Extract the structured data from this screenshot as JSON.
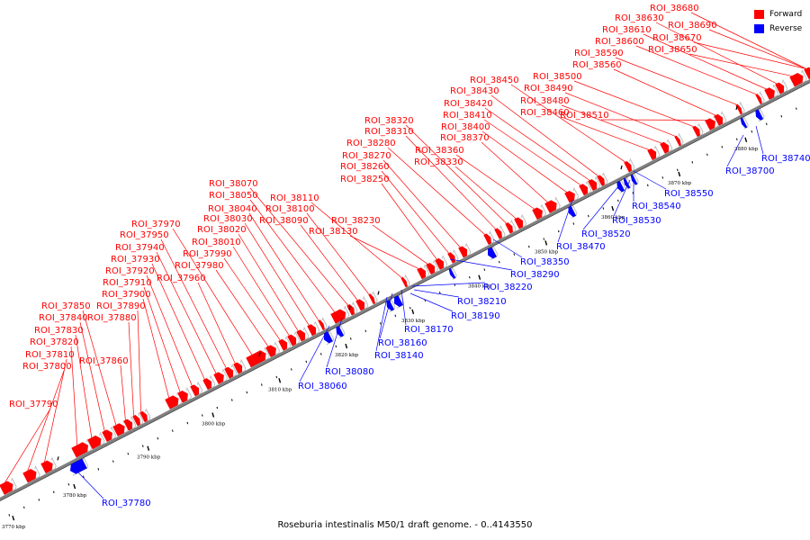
{
  "caption": "Roseburia intestinalis M50/1 draft genome. - 0..4143550",
  "legend": [
    {
      "label": "Forward",
      "color": "#ff0000"
    },
    {
      "label": "Reverse",
      "color": "#0000ff"
    }
  ],
  "colors": {
    "forward": "#ff0000",
    "reverse": "#0000ff",
    "axis": "#808080"
  },
  "scale_ticks": [
    "3770 kbp",
    "3780 kbp",
    "3790 kbp",
    "3800 kbp",
    "3810 kbp",
    "3820 kbp",
    "3830 kbp",
    "3840 kbp",
    "3850 kbp",
    "3860 kbp",
    "3870 kbp",
    "3880 kbp"
  ],
  "forward_labels": [
    "ROI_37790",
    "ROI_37800",
    "ROI_37810",
    "ROI_37820",
    "ROI_37830",
    "ROI_37840",
    "ROI_37850",
    "ROI_37860",
    "ROI_37880",
    "ROI_37890",
    "ROI_37900",
    "ROI_37910",
    "ROI_37920",
    "ROI_37930",
    "ROI_37940",
    "ROI_37950",
    "ROI_37960",
    "ROI_37970",
    "ROI_37980",
    "ROI_37990",
    "ROI_38010",
    "ROI_38020",
    "ROI_38030",
    "ROI_38040",
    "ROI_38050",
    "ROI_38070",
    "ROI_38090",
    "ROI_38100",
    "ROI_38110",
    "ROI_38130",
    "ROI_38230",
    "ROI_38250",
    "ROI_38260",
    "ROI_38270",
    "ROI_38280",
    "ROI_38310",
    "ROI_38320",
    "ROI_38330",
    "ROI_38360",
    "ROI_38370",
    "ROI_38400",
    "ROI_38410",
    "ROI_38420",
    "ROI_38430",
    "ROI_38450",
    "ROI_38460",
    "ROI_38480",
    "ROI_38490",
    "ROI_38500",
    "ROI_38510",
    "ROI_38560",
    "ROI_38590",
    "ROI_38600",
    "ROI_38610",
    "ROI_38630",
    "ROI_38650",
    "ROI_38670",
    "ROI_38680",
    "ROI_38690"
  ],
  "reverse_labels": [
    "ROI_37780",
    "ROI_38060",
    "ROI_38080",
    "ROI_38140",
    "ROI_38160",
    "ROI_38170",
    "ROI_38190",
    "ROI_38210",
    "ROI_38220",
    "ROI_38290",
    "ROI_38350",
    "ROI_38470",
    "ROI_38520",
    "ROI_38530",
    "ROI_38540",
    "ROI_38550",
    "ROI_38700",
    "ROI_38740"
  ]
}
